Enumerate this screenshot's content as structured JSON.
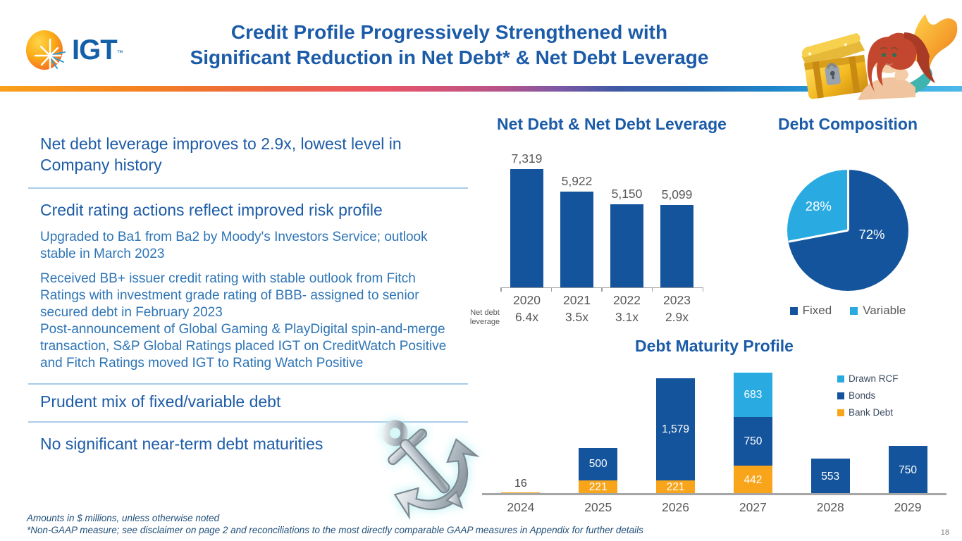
{
  "slide": {
    "logo": {
      "text": "IGT",
      "tm": "™"
    },
    "title": {
      "line1": "Credit Profile Progressively Strengthened with",
      "line2": "Significant Reduction in Net Debt* & Net Debt Leverage"
    },
    "left_panel": {
      "sections": [
        {
          "heading": "Net debt leverage improves to 2.9x, lowest level in Company history"
        },
        {
          "heading": "Credit rating actions reflect improved risk profile",
          "bullets": [
            "Upgraded to Ba1 from Ba2 by Moody's Investors Service; outlook stable in March 2023",
            "Received BB+ issuer credit rating with stable outlook from Fitch Ratings with investment grade rating of BBB- assigned to senior secured debt in February 2023",
            "Post-announcement of Global Gaming & PlayDigital spin-and-merge transaction, S&P Global Ratings placed IGT on CreditWatch Positive and Fitch Ratings moved IGT to Rating Watch Positive"
          ]
        },
        {
          "heading": "Prudent mix of fixed/variable debt"
        },
        {
          "heading": "No significant near-term debt maturities"
        }
      ]
    },
    "footnotes": {
      "line1": "Amounts in $ millions, unless otherwise noted",
      "line2": "*Non-GAAP measure; see disclaimer on page 2 and reconciliations to the most directly comparable GAAP measures in Appendix for further details"
    },
    "page_number": "18"
  },
  "colors": {
    "dark_blue": "#14549c",
    "light_blue": "#29abe2",
    "orange": "#f9a51b",
    "title_blue": "#1b5ba8",
    "gray_label": "#595959"
  },
  "chart_data": [
    {
      "id": "net_debt",
      "type": "bar",
      "title": "Net Debt & Net Debt Leverage",
      "categories": [
        "2020",
        "2021",
        "2022",
        "2023"
      ],
      "values": [
        7319,
        5922,
        5150,
        5099
      ],
      "value_labels": [
        "7,319",
        "5,922",
        "5,150",
        "5,099"
      ],
      "row_label": "Net debt leverage",
      "row_values": [
        "6.4x",
        "3.5x",
        "3.1x",
        "2.9x"
      ],
      "bar_color": "#14549c",
      "ylim": [
        0,
        7319
      ],
      "grid": "off"
    },
    {
      "id": "debt_composition",
      "type": "pie",
      "title": "Debt Composition",
      "slices": [
        {
          "label": "Fixed",
          "value": 72,
          "display": "72%",
          "color": "#14549c"
        },
        {
          "label": "Variable",
          "value": 28,
          "display": "28%",
          "color": "#29abe2"
        }
      ],
      "legend_position": "bottom"
    },
    {
      "id": "debt_maturity",
      "type": "stacked-bar",
      "title": "Debt Maturity Profile",
      "categories": [
        "2024",
        "2025",
        "2026",
        "2027",
        "2028",
        "2029"
      ],
      "series": [
        {
          "name": "Bank Debt",
          "color": "#f9a51b",
          "values": [
            16,
            221,
            221,
            442,
            0,
            0
          ],
          "labels": [
            "16",
            "221",
            "221",
            "442",
            "",
            ""
          ]
        },
        {
          "name": "Bonds",
          "color": "#14549c",
          "values": [
            0,
            500,
            1579,
            750,
            553,
            750
          ],
          "labels": [
            "",
            "500",
            "1,579",
            "750",
            "553",
            "750"
          ]
        },
        {
          "name": "Drawn RCF",
          "color": "#29abe2",
          "values": [
            0,
            0,
            0,
            683,
            0,
            0
          ],
          "labels": [
            "",
            "",
            "",
            "683",
            "",
            ""
          ]
        }
      ],
      "legend": [
        "Drawn RCF",
        "Bonds",
        "Bank Debt"
      ],
      "legend_position": "right",
      "ylim": [
        0,
        1950
      ],
      "grid": "off"
    }
  ]
}
